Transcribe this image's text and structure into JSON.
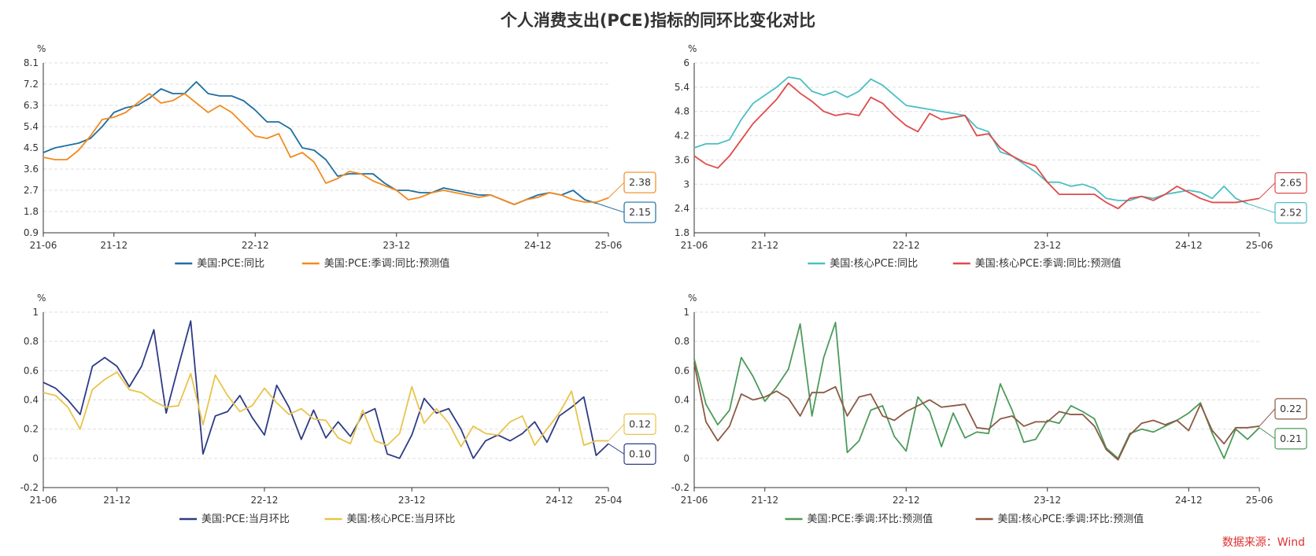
{
  "title": "个人消费支出(PCE)指标的同环比变化对比",
  "source": "数据来源：Wind",
  "chart_data": [
    {
      "type": "line",
      "unit": "%",
      "ylim": [
        0.9,
        8.1
      ],
      "yticks": [
        "0.9",
        "1.8",
        "2.7",
        "3.6",
        "4.5",
        "5.4",
        "6.3",
        "7.2",
        "8.1"
      ],
      "xticks": [
        "21-06",
        "21-12",
        "22-12",
        "23-12",
        "24-12",
        "25-06"
      ],
      "x_tick_index": [
        0,
        6,
        18,
        30,
        42,
        48
      ],
      "n_points": 49,
      "series": [
        {
          "name": "美国:PCE:同比",
          "color": "#1f6fa0",
          "values": [
            4.3,
            4.5,
            4.6,
            4.7,
            4.9,
            5.4,
            6.0,
            6.2,
            6.3,
            6.6,
            7.0,
            6.8,
            6.8,
            7.3,
            6.8,
            6.7,
            6.7,
            6.5,
            6.1,
            5.6,
            5.6,
            5.3,
            4.5,
            4.4,
            4.0,
            3.3,
            3.4,
            3.4,
            3.4,
            3.0,
            2.7,
            2.7,
            2.6,
            2.6,
            2.8,
            2.7,
            2.6,
            2.5,
            2.5,
            2.3,
            2.1,
            2.3,
            2.5,
            2.6,
            2.5,
            2.7,
            2.3,
            2.15,
            null
          ],
          "callout": "2.15"
        },
        {
          "name": "美国:PCE:季调:同比:预测值",
          "color": "#f28a1e",
          "values": [
            4.1,
            4.0,
            4.0,
            4.4,
            5.0,
            5.7,
            5.8,
            6.0,
            6.4,
            6.8,
            6.4,
            6.5,
            6.8,
            6.4,
            6.0,
            6.3,
            6.0,
            5.5,
            5.0,
            4.9,
            5.1,
            4.1,
            4.3,
            3.9,
            3.0,
            3.2,
            3.5,
            3.4,
            3.1,
            2.9,
            2.7,
            2.3,
            2.4,
            2.6,
            2.7,
            2.6,
            2.5,
            2.4,
            2.5,
            2.3,
            2.1,
            2.3,
            2.4,
            2.6,
            2.5,
            2.3,
            2.2,
            2.2,
            2.38
          ],
          "callout": "2.38"
        }
      ]
    },
    {
      "type": "line",
      "unit": "%",
      "ylim": [
        1.8,
        6
      ],
      "yticks": [
        "1.8",
        "2.4",
        "3",
        "3.6",
        "4.2",
        "4.8",
        "5.4",
        "6"
      ],
      "xticks": [
        "21-06",
        "21-12",
        "22-12",
        "23-12",
        "24-12",
        "25-06"
      ],
      "x_tick_index": [
        0,
        6,
        18,
        30,
        42,
        48
      ],
      "n_points": 49,
      "series": [
        {
          "name": "美国:核心PCE:同比",
          "color": "#4bbfc4",
          "values": [
            3.9,
            4.0,
            4.0,
            4.1,
            4.6,
            5.0,
            5.2,
            5.4,
            5.65,
            5.6,
            5.3,
            5.2,
            5.3,
            5.15,
            5.3,
            5.6,
            5.45,
            5.2,
            4.95,
            4.9,
            4.85,
            4.8,
            4.75,
            4.7,
            4.4,
            4.3,
            3.8,
            3.7,
            3.5,
            3.3,
            3.05,
            3.05,
            2.95,
            3.0,
            2.9,
            2.65,
            2.6,
            2.6,
            2.7,
            2.65,
            2.75,
            2.8,
            2.85,
            2.8,
            2.65,
            2.95,
            2.65,
            2.52,
            null
          ],
          "callout": "2.52"
        },
        {
          "name": "美国:核心PCE:季调:同比:预测值",
          "color": "#e04a4a",
          "values": [
            3.7,
            3.5,
            3.4,
            3.7,
            4.1,
            4.5,
            4.8,
            5.1,
            5.5,
            5.25,
            5.05,
            4.8,
            4.7,
            4.75,
            4.7,
            5.15,
            5.0,
            4.7,
            4.45,
            4.3,
            4.75,
            4.6,
            4.65,
            4.7,
            4.2,
            4.25,
            3.9,
            3.7,
            3.55,
            3.45,
            3.05,
            2.75,
            2.75,
            2.75,
            2.75,
            2.55,
            2.4,
            2.65,
            2.7,
            2.6,
            2.75,
            2.95,
            2.8,
            2.65,
            2.55,
            2.55,
            2.55,
            2.6,
            2.65
          ],
          "callout": "2.65"
        }
      ]
    },
    {
      "type": "line",
      "unit": "%",
      "ylim": [
        -0.2,
        1
      ],
      "yticks": [
        "-0.2",
        "0",
        "0.2",
        "0.4",
        "0.6",
        "0.8",
        "1"
      ],
      "xticks": [
        "21-06",
        "21-12",
        "22-12",
        "23-12",
        "24-12",
        "25-04"
      ],
      "x_tick_index": [
        0,
        6,
        18,
        30,
        42,
        46
      ],
      "n_points": 47,
      "series": [
        {
          "name": "美国:PCE:当月环比",
          "color": "#2e3b85",
          "values": [
            0.52,
            0.48,
            0.4,
            0.3,
            0.63,
            0.69,
            0.63,
            0.49,
            0.63,
            0.88,
            0.31,
            0.63,
            0.94,
            0.03,
            0.29,
            0.32,
            0.43,
            0.28,
            0.16,
            0.5,
            0.35,
            0.13,
            0.33,
            0.14,
            0.25,
            0.15,
            0.3,
            0.34,
            0.03,
            0.0,
            0.16,
            0.41,
            0.31,
            0.34,
            0.2,
            0.0,
            0.12,
            0.16,
            0.12,
            0.17,
            0.25,
            0.11,
            0.29,
            0.35,
            0.42,
            0.02,
            0.1
          ],
          "callout": "0.10"
        },
        {
          "name": "美国:核心PCE:当月环比",
          "color": "#e8c44a",
          "values": [
            0.45,
            0.43,
            0.35,
            0.2,
            0.47,
            0.54,
            0.59,
            0.47,
            0.45,
            0.39,
            0.35,
            0.36,
            0.58,
            0.23,
            0.57,
            0.43,
            0.32,
            0.36,
            0.48,
            0.38,
            0.3,
            0.34,
            0.27,
            0.26,
            0.14,
            0.1,
            0.33,
            0.12,
            0.09,
            0.17,
            0.49,
            0.24,
            0.34,
            0.24,
            0.08,
            0.22,
            0.17,
            0.16,
            0.25,
            0.29,
            0.09,
            0.2,
            0.31,
            0.46,
            0.09,
            0.12,
            0.12
          ],
          "callout": "0.12"
        }
      ]
    },
    {
      "type": "line",
      "unit": "%",
      "ylim": [
        -0.2,
        1
      ],
      "yticks": [
        "-0.2",
        "0",
        "0.2",
        "0.4",
        "0.6",
        "0.8",
        "1"
      ],
      "xticks": [
        "21-06",
        "21-12",
        "22-12",
        "23-12",
        "24-12",
        "25-06"
      ],
      "x_tick_index": [
        0,
        6,
        18,
        30,
        42,
        48
      ],
      "n_points": 49,
      "series": [
        {
          "name": "美国:PCE:季调:环比:预测值",
          "color": "#4c9a5a",
          "values": [
            0.68,
            0.37,
            0.23,
            0.33,
            0.69,
            0.56,
            0.39,
            0.49,
            0.61,
            0.92,
            0.29,
            0.69,
            0.93,
            0.04,
            0.12,
            0.33,
            0.36,
            0.15,
            0.05,
            0.42,
            0.32,
            0.08,
            0.31,
            0.14,
            0.18,
            0.17,
            0.51,
            0.33,
            0.11,
            0.13,
            0.26,
            0.24,
            0.36,
            0.32,
            0.27,
            0.07,
            0.0,
            0.17,
            0.2,
            0.18,
            0.22,
            0.26,
            0.31,
            0.38,
            0.17,
            0.0,
            0.2,
            0.13,
            0.21
          ],
          "callout": "0.21"
        },
        {
          "name": "美国:核心PCE:季调:环比:预测值",
          "color": "#8b5a44",
          "values": [
            0.65,
            0.25,
            0.12,
            0.22,
            0.44,
            0.4,
            0.42,
            0.46,
            0.41,
            0.29,
            0.45,
            0.45,
            0.49,
            0.29,
            0.42,
            0.44,
            0.29,
            0.26,
            0.32,
            0.36,
            0.4,
            0.35,
            0.36,
            0.37,
            0.21,
            0.2,
            0.27,
            0.29,
            0.22,
            0.25,
            0.25,
            0.32,
            0.3,
            0.3,
            0.22,
            0.06,
            -0.01,
            0.16,
            0.24,
            0.26,
            0.23,
            0.26,
            0.19,
            0.37,
            0.19,
            0.1,
            0.21,
            0.21,
            0.22
          ],
          "callout": "0.22"
        }
      ]
    }
  ]
}
